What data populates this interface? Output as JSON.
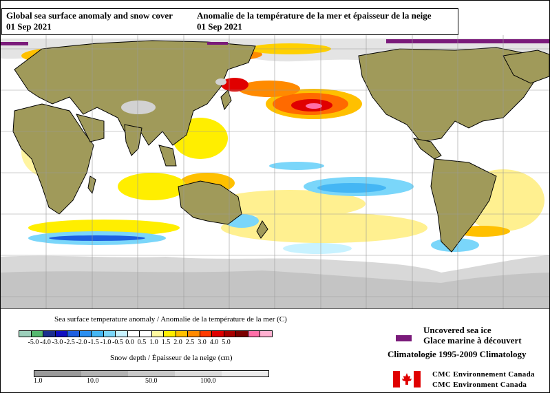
{
  "title": {
    "english": "Global sea surface anomaly and snow cover",
    "english_date": "01 Sep 2021",
    "french": "Anomalie de la température de la mer et épaisseur de la neige",
    "french_date": "01 Sep 2021"
  },
  "sst_legend": {
    "title": "Sea surface temperature anomaly / Anomalie de la température de la mer (C)",
    "colors": [
      "#9ccfbb",
      "#55b86f",
      "#1c2f8f",
      "#1010c0",
      "#1e5fe0",
      "#2a8ef0",
      "#44b6f4",
      "#7ad6fa",
      "#c8f2ff",
      "#ffffff",
      "#ffffff",
      "#fff9a0",
      "#ffee00",
      "#ffc000",
      "#ff8a00",
      "#ff3a00",
      "#e00000",
      "#a80000",
      "#7a0000",
      "#ff6fa8",
      "#ffb0d0"
    ],
    "labels": [
      "-5.0",
      "-4.0",
      "-3.0",
      "-2.5",
      "-2.0",
      "-1.5",
      "-1.0",
      "-0.5",
      "0.0",
      "0.5",
      "1.0",
      "1.5",
      "2.0",
      "2.5",
      "3.0",
      "4.0",
      "5.0"
    ]
  },
  "snow_legend": {
    "title": "Snow depth / Épaisseur de la neige (cm)",
    "labels": [
      "1.0",
      "10.0",
      "50.0",
      "100.0"
    ],
    "colors": [
      "#9a9a9a",
      "#b2b2b2",
      "#c8c8c8",
      "#dcdcdc",
      "#ececec"
    ]
  },
  "sea_ice": {
    "label_en": "Uncovered sea ice",
    "label_fr": "Glace marine à découvert",
    "color": "#7a1a7a"
  },
  "climatology": "Climatologie 1995-2009 Climatology",
  "credits": {
    "line1": "CMC Environnement Canada",
    "line2": "CMC Environment Canada"
  },
  "map_colors": {
    "land": "#a09a5a",
    "snow": "#d2d2d2",
    "grid": "#999999"
  }
}
